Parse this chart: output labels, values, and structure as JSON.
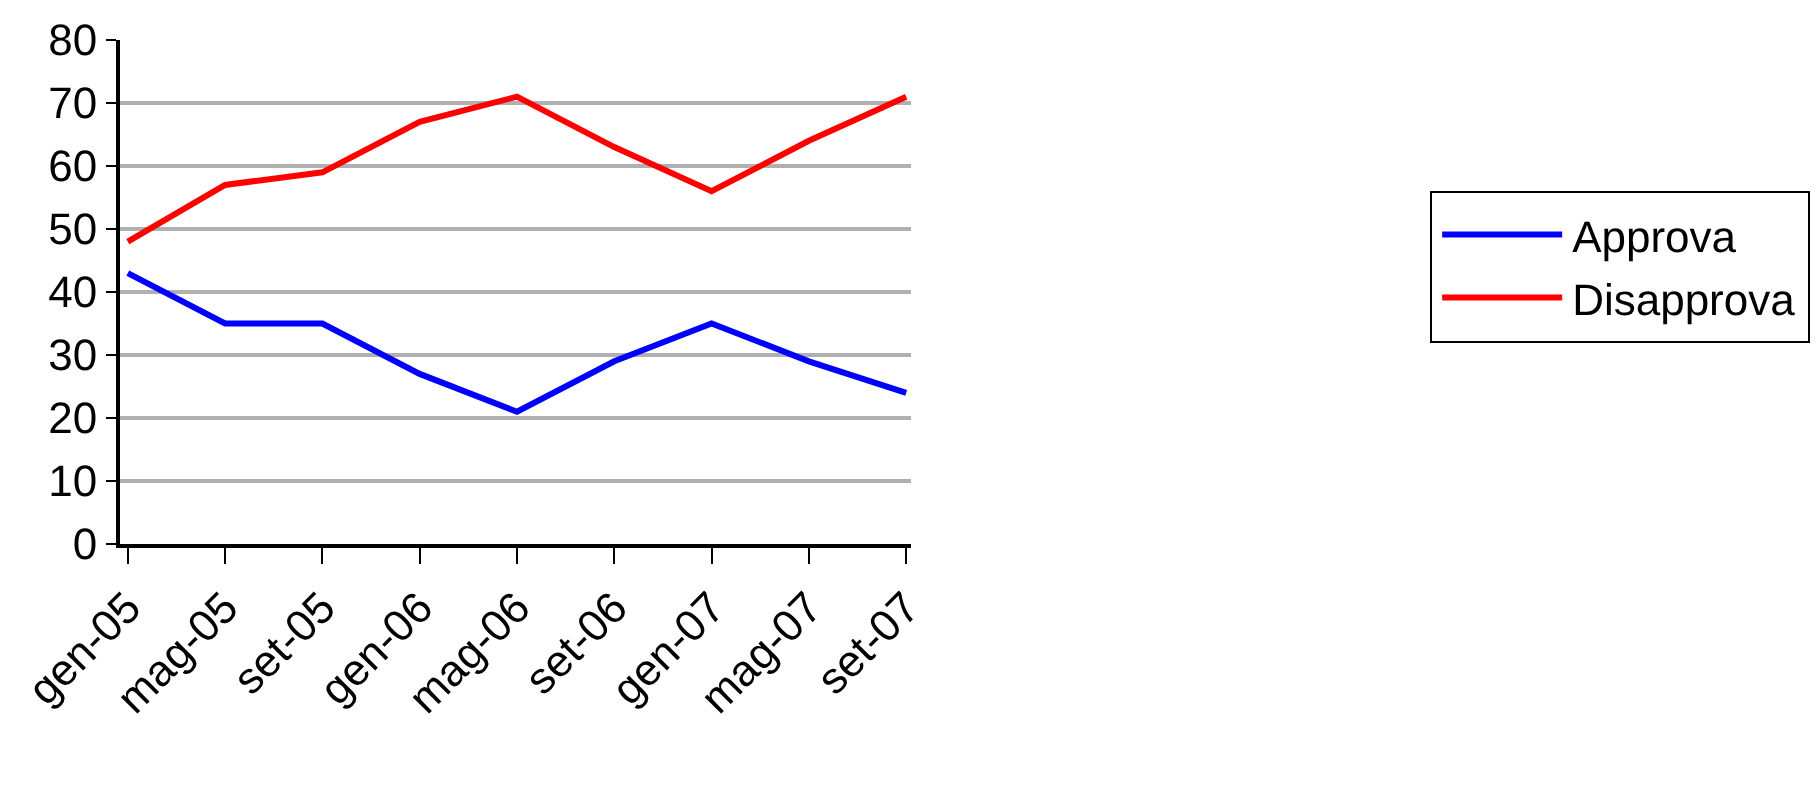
{
  "chart_data": {
    "type": "line",
    "categories": [
      "gen-05",
      "mag-05",
      "set-05",
      "gen-06",
      "mag-06",
      "set-06",
      "gen-07",
      "mag-07",
      "set-07"
    ],
    "series": [
      {
        "name": "Approva",
        "color": "#0000ff",
        "values": [
          43,
          35,
          35,
          27,
          21,
          29,
          35,
          29,
          24
        ]
      },
      {
        "name": "Disapprova",
        "color": "#ff0000",
        "values": [
          48,
          57,
          59,
          67,
          71,
          63,
          56,
          64,
          71
        ]
      }
    ],
    "ylim": [
      0,
      80
    ],
    "yticks": [
      0,
      10,
      20,
      30,
      40,
      50,
      60,
      70,
      80
    ],
    "grid": "y",
    "legend": "right",
    "marker": "none",
    "line_style": "solid"
  }
}
